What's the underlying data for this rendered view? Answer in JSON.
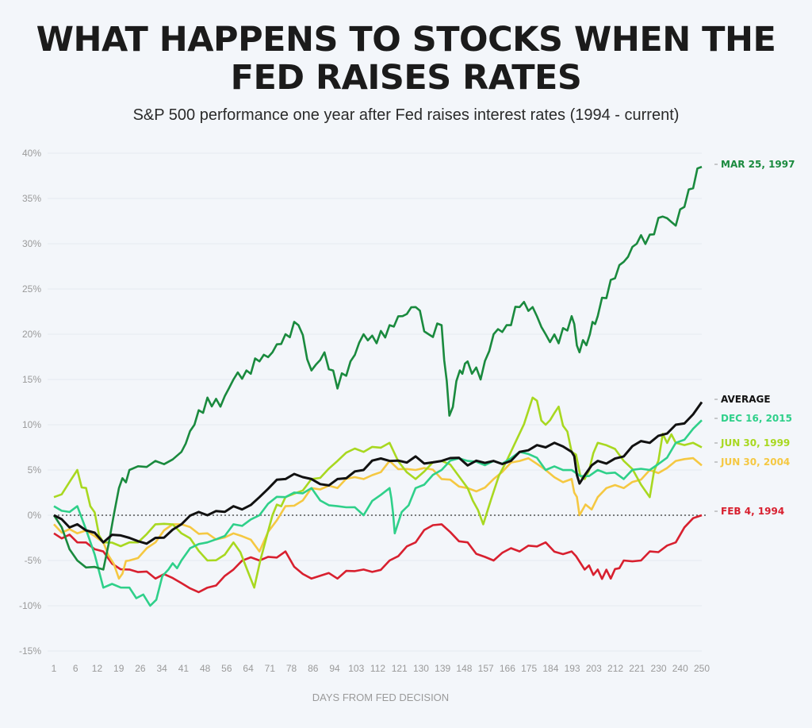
{
  "chart_data": {
    "type": "line",
    "title": "WHAT HAPPENS TO STOCKS WHEN THE FED RAISES RATES",
    "subtitle": "S&P 500 performance one year after Fed raises interest rates (1994 - current)",
    "xlabel": "DAYS FROM FED DECISION",
    "ylabel": "",
    "xlim": [
      1,
      250
    ],
    "ylim": [
      -15,
      40
    ],
    "x_ticks": [
      "1",
      "6",
      "12",
      "19",
      "26",
      "34",
      "41",
      "48",
      "56",
      "64",
      "71",
      "78",
      "86",
      "94",
      "103",
      "112",
      "121",
      "130",
      "139",
      "148",
      "157",
      "166",
      "175",
      "184",
      "193",
      "203",
      "212",
      "221",
      "230",
      "240",
      "250"
    ],
    "y_ticks": [
      "40%",
      "35%",
      "30%",
      "25%",
      "20%",
      "15%",
      "10%",
      "5%",
      "0%",
      "-5%",
      "-10%",
      "-15%"
    ],
    "y_tick_values": [
      40,
      35,
      30,
      25,
      20,
      15,
      10,
      5,
      0,
      -5,
      -10,
      -15
    ],
    "reference_line": {
      "y": 0,
      "style": "dotted"
    },
    "grid": false,
    "legend": "right-end labels",
    "series": [
      {
        "name": "MAR 25, 1997",
        "color": "#1a8a3e",
        "x": [
          1,
          10,
          20,
          26,
          30,
          40,
          50,
          55,
          60,
          65,
          70,
          75,
          80,
          85,
          90,
          95,
          100,
          105,
          110,
          115,
          120,
          125,
          130,
          135,
          140,
          145,
          150,
          153,
          157,
          160,
          165,
          170,
          175,
          180,
          185,
          190,
          195,
          200,
          203,
          207,
          210,
          215,
          220,
          225,
          230,
          235,
          240,
          245,
          250
        ],
        "y": [
          0,
          -5,
          -6,
          3,
          5,
          6,
          7,
          10,
          13,
          12,
          15,
          16,
          17,
          18,
          20,
          21,
          16,
          18,
          14,
          17,
          20,
          19,
          21,
          22,
          23,
          20,
          21,
          11,
          16,
          17,
          15,
          20,
          21,
          23,
          23,
          20,
          19,
          22,
          18,
          20,
          22,
          26,
          28,
          30,
          31,
          33,
          32,
          36,
          38.5
        ]
      },
      {
        "name": "AVERAGE",
        "color": "#111111",
        "x": [
          1,
          10,
          20,
          30,
          40,
          50,
          60,
          70,
          80,
          90,
          100,
          110,
          120,
          130,
          140,
          150,
          160,
          170,
          180,
          190,
          200,
          203,
          210,
          220,
          230,
          240,
          250
        ],
        "y": [
          0,
          -1,
          -3,
          -2.5,
          -2.5,
          -1,
          0,
          1,
          2,
          4,
          4,
          4,
          5,
          6,
          6.5,
          6,
          5.5,
          6,
          7,
          7.5,
          7,
          3.5,
          6,
          6.5,
          8,
          10,
          12.5
        ]
      },
      {
        "name": "DEC 16, 2015",
        "color": "#2fd08a",
        "x": [
          1,
          10,
          20,
          30,
          38,
          45,
          50,
          60,
          70,
          80,
          90,
          100,
          110,
          120,
          130,
          132,
          140,
          150,
          160,
          170,
          180,
          190,
          200,
          210,
          220,
          230,
          240,
          250
        ],
        "y": [
          1,
          1,
          -8,
          -8,
          -10,
          -6,
          -5,
          -3,
          -1,
          0,
          2,
          3,
          1,
          0,
          3,
          -2,
          3,
          5,
          6,
          6,
          7,
          5,
          5,
          5,
          4,
          5,
          8,
          10.5
        ]
      },
      {
        "name": "JUN 30, 1999",
        "color": "#a8d820",
        "x": [
          1,
          10,
          15,
          20,
          30,
          40,
          50,
          60,
          70,
          78,
          85,
          90,
          100,
          110,
          120,
          130,
          140,
          150,
          160,
          166,
          175,
          185,
          190,
          195,
          200,
          205,
          210,
          220,
          230,
          235,
          240,
          250
        ],
        "y": [
          2,
          5,
          1,
          -3,
          -3,
          -1,
          -2,
          -5,
          -3,
          -8,
          0,
          2,
          4,
          6,
          7,
          8,
          4,
          6,
          3,
          -1,
          6,
          13,
          10,
          12,
          7,
          4,
          8,
          6,
          2,
          9,
          8,
          7.5
        ]
      },
      {
        "name": "JUN 30, 2004",
        "color": "#f5c842",
        "x": [
          1,
          10,
          20,
          26,
          30,
          40,
          50,
          60,
          70,
          80,
          90,
          100,
          110,
          120,
          130,
          140,
          150,
          160,
          170,
          180,
          190,
          200,
          203,
          210,
          220,
          230,
          240,
          250
        ],
        "y": [
          -1,
          -2,
          -3,
          -7,
          -5,
          -3,
          -1,
          -2,
          -2,
          -4,
          1,
          3,
          3,
          4,
          6,
          5,
          4,
          3,
          4,
          6,
          5,
          4,
          0,
          2,
          3,
          5,
          6,
          5.5
        ]
      },
      {
        "name": "FEB 4, 1994",
        "color": "#d8202f",
        "x": [
          1,
          10,
          20,
          30,
          40,
          50,
          60,
          70,
          80,
          90,
          100,
          110,
          120,
          130,
          140,
          150,
          160,
          170,
          180,
          190,
          200,
          205,
          210,
          215,
          220,
          230,
          240,
          250
        ],
        "y": [
          -2,
          -3,
          -4,
          -6,
          -7,
          -7.5,
          -8,
          -6,
          -5,
          -4,
          -7,
          -7,
          -6,
          -5,
          -3,
          -1,
          -3,
          -5,
          -4,
          -3,
          -4,
          -6,
          -6,
          -7,
          -5,
          -4,
          -3,
          0
        ]
      }
    ]
  }
}
